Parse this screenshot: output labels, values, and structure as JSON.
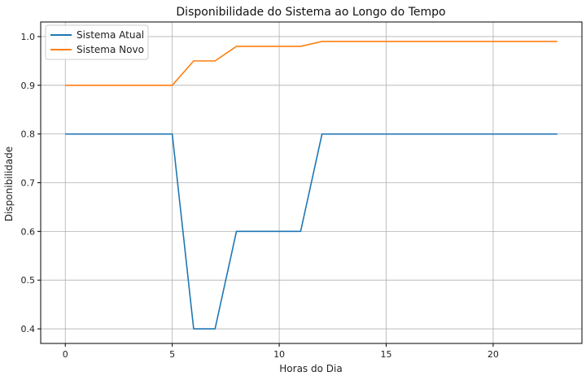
{
  "chart_data": {
    "type": "line",
    "title": "Disponibilidade do Sistema ao Longo do Tempo",
    "xlabel": "Horas do Dia",
    "ylabel": "Disponibilidade",
    "xlim": [
      -1.15,
      24.15
    ],
    "ylim": [
      0.37,
      1.03
    ],
    "xticks": [
      0,
      5,
      10,
      15,
      20
    ],
    "yticks": [
      0.4,
      0.5,
      0.6,
      0.7,
      0.8,
      0.9,
      1.0
    ],
    "xtick_labels": [
      "0",
      "5",
      "10",
      "15",
      "20"
    ],
    "ytick_labels": [
      "0.4",
      "0.5",
      "0.6",
      "0.7",
      "0.8",
      "0.9",
      "1.0"
    ],
    "grid": true,
    "legend_position": "top-left",
    "x": [
      0,
      1,
      2,
      3,
      4,
      5,
      6,
      7,
      8,
      9,
      10,
      11,
      12,
      13,
      14,
      15,
      16,
      17,
      18,
      19,
      20,
      21,
      22,
      23
    ],
    "series": [
      {
        "name": "Sistema Atual",
        "color": "#1f77b4",
        "values": [
          0.8,
          0.8,
          0.8,
          0.8,
          0.8,
          0.8,
          0.4,
          0.4,
          0.6,
          0.6,
          0.6,
          0.6,
          0.8,
          0.8,
          0.8,
          0.8,
          0.8,
          0.8,
          0.8,
          0.8,
          0.8,
          0.8,
          0.8,
          0.8
        ]
      },
      {
        "name": "Sistema Novo",
        "color": "#ff7f0e",
        "values": [
          0.9,
          0.9,
          0.9,
          0.9,
          0.9,
          0.9,
          0.95,
          0.95,
          0.98,
          0.98,
          0.98,
          0.98,
          0.99,
          0.99,
          0.99,
          0.99,
          0.99,
          0.99,
          0.99,
          0.99,
          0.99,
          0.99,
          0.99,
          0.99
        ]
      }
    ]
  }
}
